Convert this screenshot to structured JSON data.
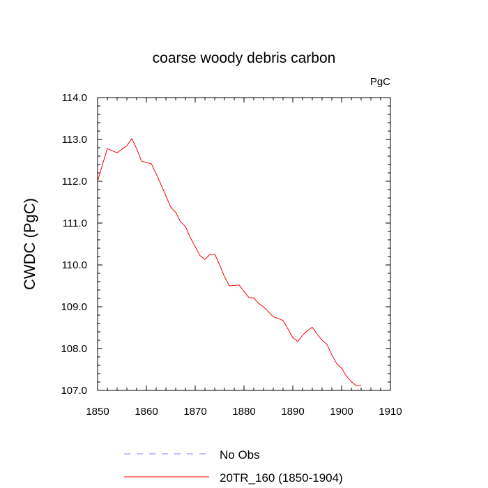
{
  "chart_data": {
    "type": "line",
    "title": "coarse woody debris carbon",
    "units_label": "PgC",
    "xlabel": "",
    "ylabel": "CWDC  (PgC)",
    "xlim": [
      1850,
      1910
    ],
    "ylim": [
      107.0,
      114.0
    ],
    "x_ticks": [
      "1850",
      "1860",
      "1870",
      "1880",
      "1890",
      "1900",
      "1910"
    ],
    "y_ticks": [
      "107.0",
      "108.0",
      "109.0",
      "110.0",
      "111.0",
      "112.0",
      "113.0",
      "114.0"
    ],
    "series": [
      {
        "name": "20TR_160 (1850-1904)",
        "color": "#ff0000",
        "x": [
          1850,
          1851,
          1852,
          1853,
          1854,
          1855,
          1856,
          1857,
          1858,
          1859,
          1860,
          1861,
          1862,
          1863,
          1864,
          1865,
          1866,
          1867,
          1868,
          1869,
          1870,
          1871,
          1872,
          1873,
          1874,
          1875,
          1876,
          1877,
          1878,
          1879,
          1880,
          1881,
          1882,
          1883,
          1884,
          1885,
          1886,
          1887,
          1888,
          1889,
          1890,
          1891,
          1892,
          1893,
          1894,
          1895,
          1896,
          1897,
          1898,
          1899,
          1900,
          1901,
          1902,
          1903,
          1904
        ],
        "values": [
          112.0,
          112.4,
          112.78,
          112.73,
          112.68,
          112.77,
          112.85,
          113.02,
          112.78,
          112.48,
          112.45,
          112.42,
          112.18,
          111.92,
          111.65,
          111.38,
          111.26,
          111.03,
          110.92,
          110.65,
          110.44,
          110.22,
          110.13,
          110.25,
          110.26,
          110.0,
          109.72,
          109.5,
          109.51,
          109.52,
          109.37,
          109.22,
          109.21,
          109.08,
          109.0,
          108.88,
          108.76,
          108.72,
          108.67,
          108.47,
          108.26,
          108.17,
          108.32,
          108.43,
          108.51,
          108.34,
          108.2,
          108.1,
          107.85,
          107.64,
          107.53,
          107.34,
          107.21,
          107.11,
          107.11
        ]
      },
      {
        "name": "No Obs",
        "color": "#8080ff",
        "dashed": true,
        "x": [],
        "values": []
      }
    ],
    "legend": "bottom-left"
  }
}
